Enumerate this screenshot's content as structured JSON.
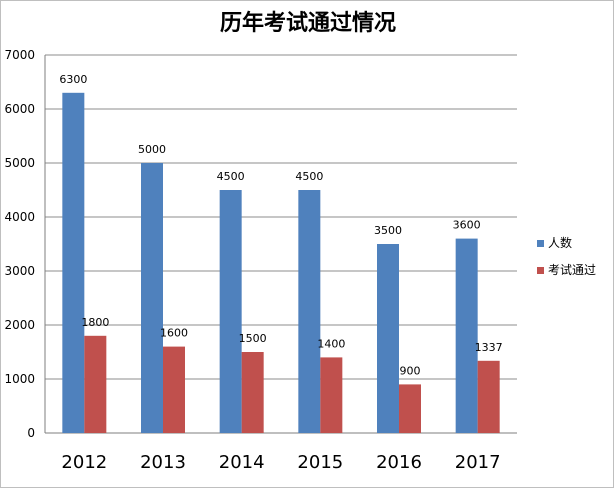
{
  "chart_data": {
    "type": "bar",
    "title": "历年考试通过情况",
    "categories": [
      "2012",
      "2013",
      "2014",
      "2015",
      "2016",
      "2017"
    ],
    "series": [
      {
        "name": "人数",
        "values": [
          6300,
          5000,
          4500,
          4500,
          3500,
          3600
        ],
        "color": "#4f81bd"
      },
      {
        "name": "考试通过",
        "values": [
          1800,
          1600,
          1500,
          1400,
          900,
          1337
        ],
        "color": "#c0504d"
      }
    ],
    "ylim": [
      0,
      7000
    ],
    "yticks": [
      0,
      1000,
      2000,
      3000,
      4000,
      5000,
      6000,
      7000
    ],
    "grid": true,
    "legend": "right",
    "data_labels": true
  }
}
